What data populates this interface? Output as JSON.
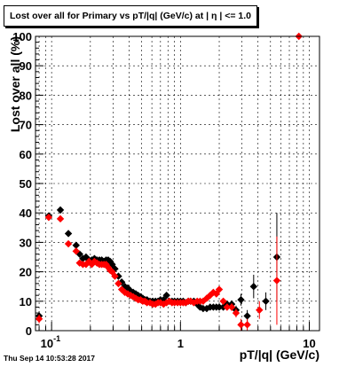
{
  "title": "Lost over all for Primary vs pT/|q| (GeV/c) at |  η | <= 1.0",
  "timestamp": "Thu Sep 14 10:53:28 2017",
  "colors": {
    "series_black": "#000000",
    "series_red": "#ff0000",
    "grid": "#000000",
    "frame": "#000000"
  },
  "chart_data": {
    "type": "scatter",
    "title": "Lost over all for Primary vs pT/|q| (GeV/c) at |  η | <= 1.0",
    "xlabel": "pT/|q| (GeV/c)",
    "ylabel": "Lost over all (%)",
    "x_scale": "log",
    "xlim": [
      0.075,
      12
    ],
    "ylim": [
      0,
      100
    ],
    "grid": true,
    "x_tick_labels": [
      {
        "value": 0.1,
        "label": "10",
        "exp": "-1"
      },
      {
        "value": 1,
        "label": "1",
        "exp": ""
      },
      {
        "value": 10,
        "label": "10",
        "exp": ""
      }
    ],
    "y_tick_labels": [
      {
        "value": 0,
        "label": "0"
      },
      {
        "value": 10,
        "label": "10"
      },
      {
        "value": 20,
        "label": "20"
      },
      {
        "value": 30,
        "label": "30"
      },
      {
        "value": 40,
        "label": "40"
      },
      {
        "value": 50,
        "label": "50"
      },
      {
        "value": 60,
        "label": "60"
      },
      {
        "value": 70,
        "label": "70"
      },
      {
        "value": 80,
        "label": "80"
      },
      {
        "value": 90,
        "label": "90"
      },
      {
        "value": 100,
        "label": "100"
      }
    ],
    "series": [
      {
        "color": "#000000",
        "marker": "diamond",
        "points": [
          [
            0.08,
            5.0,
            1.5
          ],
          [
            0.095,
            39.0,
            1.0
          ],
          [
            0.117,
            41.0,
            1.0
          ],
          [
            0.135,
            33.0,
            0.8
          ],
          [
            0.155,
            29.0,
            0.7
          ],
          [
            0.165,
            26.0,
            0.6
          ],
          [
            0.175,
            24.5,
            0.5
          ],
          [
            0.185,
            25.0,
            0.5
          ],
          [
            0.195,
            24.0,
            0.5
          ],
          [
            0.205,
            24.0,
            0.5
          ],
          [
            0.215,
            24.5,
            0.5
          ],
          [
            0.225,
            24.0,
            0.5
          ],
          [
            0.235,
            24.0,
            0.5
          ],
          [
            0.245,
            24.0,
            0.5
          ],
          [
            0.255,
            23.5,
            0.5
          ],
          [
            0.265,
            24.0,
            0.5
          ],
          [
            0.275,
            24.0,
            0.5
          ],
          [
            0.285,
            23.5,
            0.5
          ],
          [
            0.295,
            22.5,
            0.5
          ],
          [
            0.31,
            21.0,
            0.5
          ],
          [
            0.33,
            18.5,
            0.5
          ],
          [
            0.35,
            16.5,
            0.5
          ],
          [
            0.37,
            15.0,
            0.5
          ],
          [
            0.39,
            14.5,
            0.5
          ],
          [
            0.41,
            13.5,
            0.5
          ],
          [
            0.43,
            13.0,
            0.5
          ],
          [
            0.45,
            12.5,
            0.5
          ],
          [
            0.47,
            12.0,
            0.5
          ],
          [
            0.49,
            11.5,
            0.5
          ],
          [
            0.51,
            11.0,
            0.5
          ],
          [
            0.53,
            10.5,
            0.5
          ],
          [
            0.55,
            10.5,
            0.5
          ],
          [
            0.58,
            10.0,
            0.5
          ],
          [
            0.61,
            10.0,
            0.5
          ],
          [
            0.64,
            10.0,
            0.5
          ],
          [
            0.67,
            10.0,
            0.5
          ],
          [
            0.7,
            10.5,
            0.5
          ],
          [
            0.74,
            10.5,
            0.5
          ],
          [
            0.78,
            12.0,
            0.6
          ],
          [
            0.82,
            10.0,
            0.6
          ],
          [
            0.86,
            10.0,
            0.6
          ],
          [
            0.9,
            10.0,
            0.6
          ],
          [
            0.95,
            10.0,
            0.6
          ],
          [
            1.0,
            10.0,
            0.6
          ],
          [
            1.05,
            10.0,
            0.6
          ],
          [
            1.1,
            9.5,
            0.6
          ],
          [
            1.15,
            10.0,
            0.6
          ],
          [
            1.2,
            10.0,
            0.6
          ],
          [
            1.27,
            10.0,
            0.6
          ],
          [
            1.35,
            9.0,
            0.7
          ],
          [
            1.42,
            8.0,
            0.7
          ],
          [
            1.5,
            7.5,
            0.7
          ],
          [
            1.6,
            7.5,
            0.7
          ],
          [
            1.7,
            8.0,
            0.8
          ],
          [
            1.8,
            8.0,
            0.8
          ],
          [
            1.9,
            8.0,
            0.8
          ],
          [
            2.0,
            8.0,
            0.9
          ],
          [
            2.15,
            8.0,
            1.0
          ],
          [
            2.3,
            9.0,
            1.2
          ],
          [
            2.5,
            9.0,
            1.3
          ],
          [
            2.7,
            7.0,
            1.5
          ],
          [
            2.95,
            10.5,
            2.0
          ],
          [
            3.3,
            5.0,
            2.0
          ],
          [
            3.7,
            15.0,
            4.0
          ],
          [
            4.6,
            10.0,
            3.0
          ],
          [
            5.6,
            25.0,
            15.0
          ]
        ]
      },
      {
        "color": "#ff0000",
        "marker": "diamond",
        "points": [
          [
            0.08,
            4.0,
            1.5
          ],
          [
            0.095,
            38.5,
            1.0
          ],
          [
            0.117,
            38.0,
            1.0
          ],
          [
            0.135,
            29.5,
            0.8
          ],
          [
            0.155,
            27.0,
            0.7
          ],
          [
            0.165,
            23.0,
            0.6
          ],
          [
            0.175,
            22.5,
            0.5
          ],
          [
            0.185,
            22.5,
            0.5
          ],
          [
            0.195,
            23.5,
            0.5
          ],
          [
            0.205,
            22.5,
            0.5
          ],
          [
            0.215,
            23.5,
            0.5
          ],
          [
            0.225,
            23.0,
            0.5
          ],
          [
            0.235,
            22.5,
            0.5
          ],
          [
            0.245,
            22.5,
            0.5
          ],
          [
            0.255,
            22.5,
            0.5
          ],
          [
            0.265,
            22.5,
            0.5
          ],
          [
            0.275,
            21.5,
            0.5
          ],
          [
            0.285,
            20.5,
            0.5
          ],
          [
            0.295,
            20.0,
            0.5
          ],
          [
            0.31,
            18.5,
            0.5
          ],
          [
            0.33,
            16.0,
            0.5
          ],
          [
            0.35,
            14.0,
            0.5
          ],
          [
            0.37,
            13.0,
            0.5
          ],
          [
            0.39,
            12.5,
            0.5
          ],
          [
            0.41,
            12.0,
            0.5
          ],
          [
            0.43,
            11.5,
            0.5
          ],
          [
            0.45,
            11.0,
            0.5
          ],
          [
            0.47,
            10.5,
            0.5
          ],
          [
            0.49,
            10.5,
            0.5
          ],
          [
            0.51,
            10.0,
            0.5
          ],
          [
            0.53,
            10.0,
            0.5
          ],
          [
            0.55,
            9.5,
            0.5
          ],
          [
            0.58,
            9.5,
            0.5
          ],
          [
            0.61,
            9.0,
            0.5
          ],
          [
            0.64,
            9.0,
            0.5
          ],
          [
            0.67,
            9.5,
            0.5
          ],
          [
            0.7,
            9.5,
            0.5
          ],
          [
            0.74,
            9.0,
            0.5
          ],
          [
            0.78,
            9.5,
            0.6
          ],
          [
            0.82,
            10.0,
            0.6
          ],
          [
            0.86,
            9.5,
            0.6
          ],
          [
            0.9,
            9.5,
            0.6
          ],
          [
            0.95,
            9.5,
            0.6
          ],
          [
            1.0,
            9.5,
            0.6
          ],
          [
            1.05,
            9.5,
            0.6
          ],
          [
            1.1,
            9.5,
            0.6
          ],
          [
            1.15,
            10.0,
            0.6
          ],
          [
            1.2,
            10.0,
            0.6
          ],
          [
            1.27,
            9.5,
            0.6
          ],
          [
            1.35,
            10.0,
            0.7
          ],
          [
            1.42,
            10.0,
            0.7
          ],
          [
            1.5,
            10.0,
            0.7
          ],
          [
            1.6,
            11.0,
            0.7
          ],
          [
            1.7,
            12.0,
            0.8
          ],
          [
            1.8,
            13.0,
            0.8
          ],
          [
            1.9,
            12.5,
            0.8
          ],
          [
            2.0,
            14.0,
            1.0
          ],
          [
            2.15,
            10.0,
            1.0
          ],
          [
            2.3,
            8.0,
            1.2
          ],
          [
            2.5,
            8.0,
            1.3
          ],
          [
            2.7,
            6.0,
            1.5
          ],
          [
            2.95,
            2.0,
            2.0
          ],
          [
            3.3,
            2.0,
            2.0
          ],
          [
            4.1,
            7.0,
            3.0
          ],
          [
            5.6,
            17.0,
            15.0
          ],
          [
            8.3,
            100.0,
            0.0
          ]
        ]
      }
    ]
  }
}
